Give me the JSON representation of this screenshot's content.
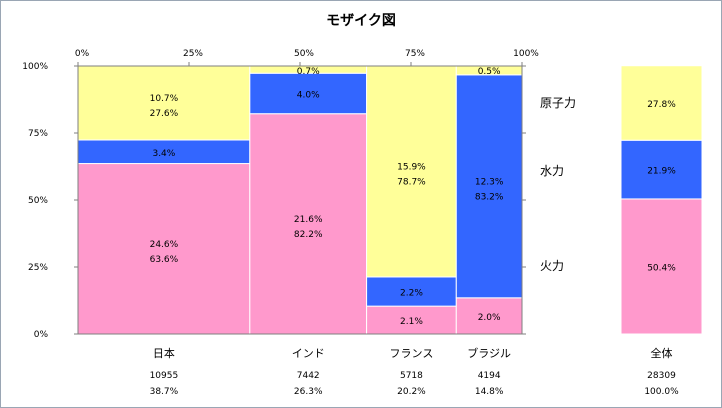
{
  "chart_data": {
    "type": "mosaic",
    "title": "モザイク図",
    "top_axis_ticks": [
      "0%",
      "25%",
      "50%",
      "75%",
      "100%"
    ],
    "left_axis_ticks": [
      "0%",
      "25%",
      "50%",
      "75%",
      "100%"
    ],
    "segment_order": [
      "火力",
      "水力",
      "原子力"
    ],
    "legend": [
      "原子力",
      "水力",
      "火力"
    ],
    "colors": {
      "火力": "#ff99cc",
      "水力": "#3366ff",
      "原子力": "#ffff99"
    },
    "categories": [
      {
        "name": "日本",
        "total": "10955",
        "total_share": "38.7%",
        "width_frac": 0.387,
        "segments": [
          {
            "series": "火力",
            "frac": 0.636,
            "lines": [
              "24.6%",
              "63.6%"
            ]
          },
          {
            "series": "水力",
            "frac": 0.088,
            "lines": [
              "3.4%"
            ]
          },
          {
            "series": "原子力",
            "frac": 0.276,
            "lines": [
              "10.7%",
              "27.6%"
            ]
          }
        ]
      },
      {
        "name": "インド",
        "total": "7442",
        "total_share": "26.3%",
        "width_frac": 0.263,
        "segments": [
          {
            "series": "火力",
            "frac": 0.822,
            "lines": [
              "21.6%",
              "82.2%"
            ]
          },
          {
            "series": "水力",
            "frac": 0.151,
            "lines": [
              "4.0%"
            ]
          },
          {
            "series": "原子力",
            "frac": 0.027,
            "lines": [
              "0.7%"
            ]
          }
        ]
      },
      {
        "name": "フランス",
        "total": "5718",
        "total_share": "20.2%",
        "width_frac": 0.202,
        "segments": [
          {
            "series": "火力",
            "frac": 0.104,
            "lines": [
              "2.1%"
            ]
          },
          {
            "series": "水力",
            "frac": 0.109,
            "lines": [
              "2.2%"
            ]
          },
          {
            "series": "原子力",
            "frac": 0.787,
            "lines": [
              "15.9%",
              "78.7%"
            ]
          }
        ]
      },
      {
        "name": "ブラジル",
        "total": "4194",
        "total_share": "14.8%",
        "width_frac": 0.148,
        "segments": [
          {
            "series": "火力",
            "frac": 0.135,
            "lines": [
              "2.0%"
            ]
          },
          {
            "series": "水力",
            "frac": 0.832,
            "lines": [
              "12.3%",
              "83.2%"
            ]
          },
          {
            "series": "原子力",
            "frac": 0.033,
            "lines": [
              "0.5%"
            ]
          }
        ]
      }
    ],
    "overall": {
      "name": "全体",
      "total": "28309",
      "total_share": "100.0%",
      "segments": [
        {
          "series": "火力",
          "frac": 0.504,
          "lines": [
            "50.4%"
          ]
        },
        {
          "series": "水力",
          "frac": 0.219,
          "lines": [
            "21.9%"
          ]
        },
        {
          "series": "原子力",
          "frac": 0.278,
          "lines": [
            "27.8%"
          ]
        }
      ]
    }
  }
}
